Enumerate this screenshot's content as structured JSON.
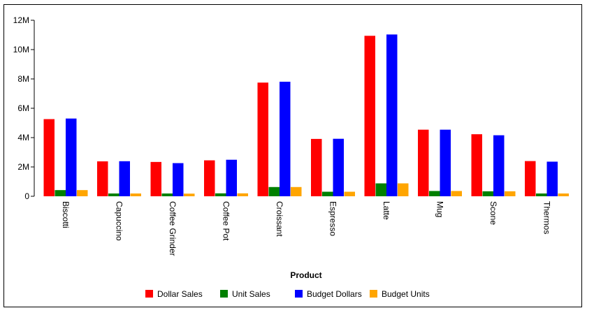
{
  "chart_data": {
    "type": "bar",
    "xlabel": "Product",
    "ylabel": "",
    "ylim": [
      0,
      12000000
    ],
    "yticks": [
      0,
      2000000,
      4000000,
      6000000,
      8000000,
      10000000,
      12000000
    ],
    "ytick_labels": [
      "0",
      "2M",
      "4M",
      "6M",
      "8M",
      "10M",
      "12M"
    ],
    "categories": [
      "Biscotti",
      "Capuccino",
      "Coffee Grinder",
      "Coffee Pot",
      "Croissant",
      "Espresso",
      "Latte",
      "Mug",
      "Scone",
      "Thermos"
    ],
    "series": [
      {
        "name": "Dollar Sales",
        "color": "#ff0000",
        "values": [
          5260000,
          2380000,
          2340000,
          2450000,
          7750000,
          3910000,
          10940000,
          4540000,
          4230000,
          2400000
        ]
      },
      {
        "name": "Unit Sales",
        "color": "#008000",
        "values": [
          420000,
          190000,
          190000,
          200000,
          630000,
          310000,
          880000,
          360000,
          340000,
          190000
        ]
      },
      {
        "name": "Budget Dollars",
        "color": "#0000ff",
        "values": [
          5300000,
          2390000,
          2260000,
          2490000,
          7810000,
          3920000,
          11030000,
          4540000,
          4160000,
          2360000
        ]
      },
      {
        "name": "Budget Units",
        "color": "#ffa500",
        "values": [
          420000,
          190000,
          180000,
          200000,
          630000,
          310000,
          880000,
          360000,
          340000,
          190000
        ]
      }
    ],
    "legend_position": "bottom-center",
    "grid": false
  }
}
